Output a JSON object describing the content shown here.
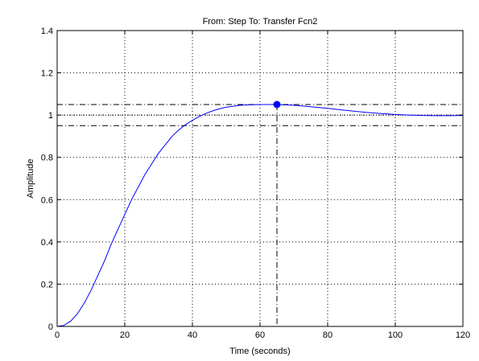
{
  "chart_data": {
    "type": "line",
    "title": "From: Step  To: Transfer Fcn2",
    "xlabel": "Time (seconds)",
    "ylabel": "Amplitude",
    "xlim": [
      0,
      120
    ],
    "ylim": [
      0,
      1.4
    ],
    "x_ticks": [
      0,
      20,
      40,
      60,
      80,
      100,
      120
    ],
    "y_ticks": [
      0,
      0.2,
      0.4,
      0.6,
      0.8,
      1,
      1.2,
      1.4
    ],
    "x_tick_labels": [
      "0",
      "20",
      "40",
      "60",
      "80",
      "100",
      "120"
    ],
    "y_tick_labels": [
      "0",
      "0.2",
      "0.4",
      "0.6",
      "0.8",
      "1",
      "1.2",
      "1.4"
    ],
    "grid": true,
    "series": [
      {
        "color": "#0000ff",
        "x": [
          0,
          2,
          4,
          6,
          8,
          10,
          12,
          14,
          16,
          18,
          20,
          22,
          24,
          26,
          28,
          30,
          32,
          34,
          36,
          38,
          40,
          42,
          44,
          46,
          48,
          50,
          52,
          54,
          56,
          58,
          60,
          62,
          64,
          65,
          66,
          68,
          70,
          72,
          74,
          76,
          78,
          80,
          84,
          88,
          92,
          96,
          100,
          104,
          108,
          112,
          116,
          120
        ],
        "y": [
          0,
          0.005,
          0.025,
          0.06,
          0.11,
          0.17,
          0.24,
          0.31,
          0.39,
          0.46,
          0.53,
          0.6,
          0.66,
          0.72,
          0.77,
          0.82,
          0.86,
          0.9,
          0.93,
          0.955,
          0.975,
          0.993,
          1.008,
          1.02,
          1.03,
          1.037,
          1.042,
          1.046,
          1.048,
          1.049,
          1.05,
          1.05,
          1.05,
          1.05,
          1.049,
          1.048,
          1.046,
          1.044,
          1.041,
          1.038,
          1.035,
          1.032,
          1.025,
          1.018,
          1.012,
          1.007,
          1.003,
          1.0,
          0.998,
          0.997,
          0.997,
          0.998
        ]
      }
    ],
    "reference_lines": {
      "steady_state": 1.0,
      "settling_upper": 1.05,
      "settling_lower": 0.95,
      "peak_marker_x": 65
    },
    "peak_point": {
      "x": 65,
      "y": 1.05,
      "color": "#0000ff"
    },
    "colors": {
      "axes": "#000000",
      "grid": "#000000",
      "line": "#0000ff"
    }
  }
}
